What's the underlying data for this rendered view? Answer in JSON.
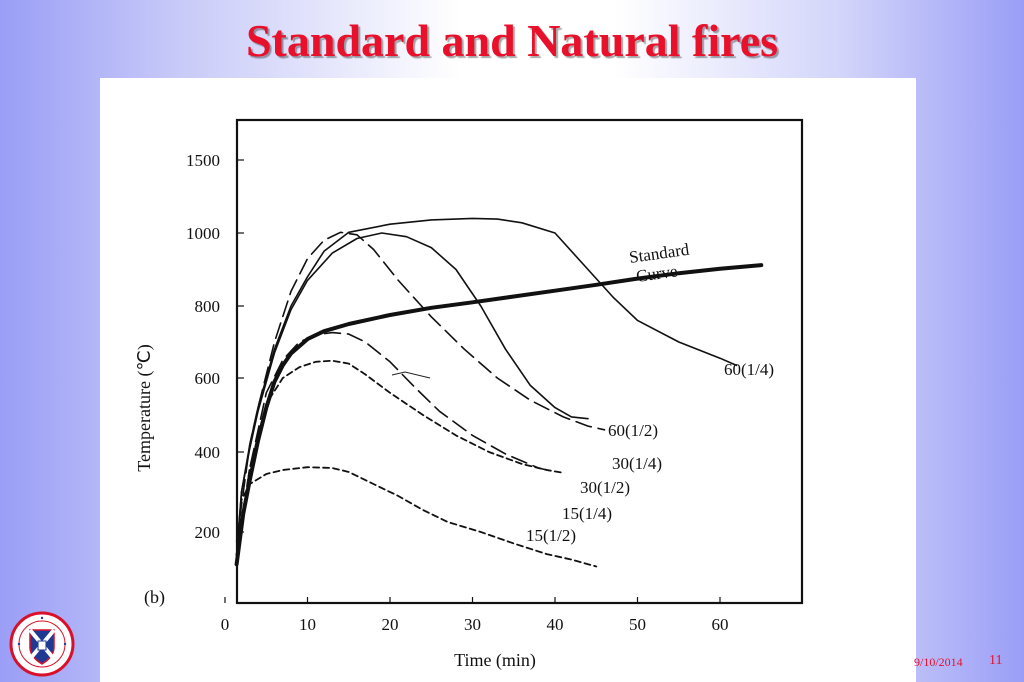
{
  "slide": {
    "title": "Standard and Natural fires",
    "date": "9/10/2014",
    "page_number": "11"
  },
  "logo": {
    "text": "THE UNIVERSITY of EDINBURGH",
    "colors": {
      "ring": "#d8102a",
      "shield": "#1f3a93",
      "cross": "#ffffff"
    }
  },
  "chart_data": {
    "type": "line",
    "panel_label": "(b)",
    "xlabel": "Time (min)",
    "ylabel": "Temperature (℃)",
    "xlim": [
      0,
      68
    ],
    "x_ticks": [
      0,
      10,
      20,
      30,
      40,
      50,
      60
    ],
    "y_ticks": [
      200,
      400,
      600,
      800,
      1000,
      1500
    ],
    "grid": false,
    "series": [
      {
        "name": "Standard Curve",
        "style": "thick-solid",
        "points": [
          [
            1.4,
            130
          ],
          [
            2.2,
            245
          ],
          [
            3,
            330
          ],
          [
            4,
            430
          ],
          [
            5,
            520
          ],
          [
            6,
            590
          ],
          [
            7,
            635
          ],
          [
            8,
            668
          ],
          [
            10,
            708
          ],
          [
            12,
            730
          ],
          [
            15,
            750
          ],
          [
            20,
            775
          ],
          [
            25,
            795
          ],
          [
            30,
            810
          ],
          [
            35,
            826
          ],
          [
            40,
            842
          ],
          [
            45,
            858
          ],
          [
            50,
            875
          ],
          [
            55,
            890
          ],
          [
            60,
            902
          ],
          [
            65,
            912
          ]
        ]
      },
      {
        "name": "60(1/4)",
        "style": "solid",
        "points": [
          [
            1.4,
            150
          ],
          [
            2,
            300
          ],
          [
            3,
            420
          ],
          [
            4,
            520
          ],
          [
            6,
            680
          ],
          [
            8,
            800
          ],
          [
            10,
            880
          ],
          [
            12,
            950
          ],
          [
            15,
            1005
          ],
          [
            20,
            1060
          ],
          [
            25,
            1090
          ],
          [
            30,
            1100
          ],
          [
            33,
            1095
          ],
          [
            36,
            1070
          ],
          [
            40,
            1000
          ],
          [
            44,
            900
          ],
          [
            47,
            825
          ],
          [
            50,
            760
          ],
          [
            55,
            700
          ],
          [
            60,
            655
          ],
          [
            62,
            635
          ]
        ]
      },
      {
        "name": "60(1/2)",
        "style": "solid",
        "points": [
          [
            1.4,
            150
          ],
          [
            2,
            300
          ],
          [
            3,
            410
          ],
          [
            4,
            510
          ],
          [
            6,
            670
          ],
          [
            8,
            790
          ],
          [
            10,
            870
          ],
          [
            13,
            945
          ],
          [
            16,
            985
          ],
          [
            19,
            1000
          ],
          [
            22,
            990
          ],
          [
            25,
            960
          ],
          [
            28,
            900
          ],
          [
            31,
            800
          ],
          [
            34,
            680
          ],
          [
            37,
            580
          ],
          [
            40,
            520
          ],
          [
            42,
            495
          ],
          [
            44,
            490
          ]
        ]
      },
      {
        "name": "30(1/4)",
        "style": "long-dash",
        "points": [
          [
            1.4,
            180
          ],
          [
            3,
            420
          ],
          [
            4,
            520
          ],
          [
            6,
            700
          ],
          [
            8,
            840
          ],
          [
            10,
            930
          ],
          [
            12,
            980
          ],
          [
            14,
            1005
          ],
          [
            16,
            995
          ],
          [
            18,
            955
          ],
          [
            21,
            870
          ],
          [
            25,
            770
          ],
          [
            29,
            680
          ],
          [
            33,
            600
          ],
          [
            37,
            540
          ],
          [
            41,
            495
          ],
          [
            44,
            470
          ],
          [
            46,
            460
          ]
        ]
      },
      {
        "name": "30(1/2)",
        "style": "long-dash",
        "points": [
          [
            1.4,
            150
          ],
          [
            3,
            360
          ],
          [
            5,
            560
          ],
          [
            7,
            650
          ],
          [
            9,
            700
          ],
          [
            11,
            720
          ],
          [
            13,
            726
          ],
          [
            15,
            722
          ],
          [
            17,
            700
          ],
          [
            20,
            645
          ],
          [
            23,
            575
          ],
          [
            26,
            510
          ],
          [
            30,
            445
          ],
          [
            34,
            395
          ],
          [
            38,
            360
          ],
          [
            40,
            350
          ]
        ]
      },
      {
        "name": "15(1/4)",
        "style": "short-dash",
        "points": [
          [
            1.4,
            150
          ],
          [
            3,
            360
          ],
          [
            5,
            530
          ],
          [
            7,
            600
          ],
          [
            9,
            630
          ],
          [
            11,
            645
          ],
          [
            13,
            648
          ],
          [
            15,
            640
          ],
          [
            17,
            610
          ],
          [
            20,
            560
          ],
          [
            24,
            500
          ],
          [
            28,
            445
          ],
          [
            32,
            400
          ],
          [
            36,
            370
          ],
          [
            39,
            355
          ],
          [
            41,
            348
          ]
        ]
      },
      {
        "name": "15(1/2)",
        "style": "short-dash",
        "points": [
          [
            1.4,
            150
          ],
          [
            2,
            280
          ],
          [
            3,
            320
          ],
          [
            5,
            345
          ],
          [
            7,
            355
          ],
          [
            10,
            362
          ],
          [
            13,
            360
          ],
          [
            15,
            350
          ],
          [
            18,
            320
          ],
          [
            21,
            290
          ],
          [
            24,
            255
          ],
          [
            27,
            225
          ],
          [
            31,
            200
          ],
          [
            35,
            175
          ],
          [
            39,
            152
          ],
          [
            42,
            140
          ],
          [
            45,
            125
          ]
        ]
      }
    ],
    "annotations": [
      "Standard",
      "Curve",
      "60(1/4)",
      "60(1/2)",
      "30(1/4)",
      "30(1/2)",
      "15(1/4)",
      "15(1/2)"
    ]
  }
}
